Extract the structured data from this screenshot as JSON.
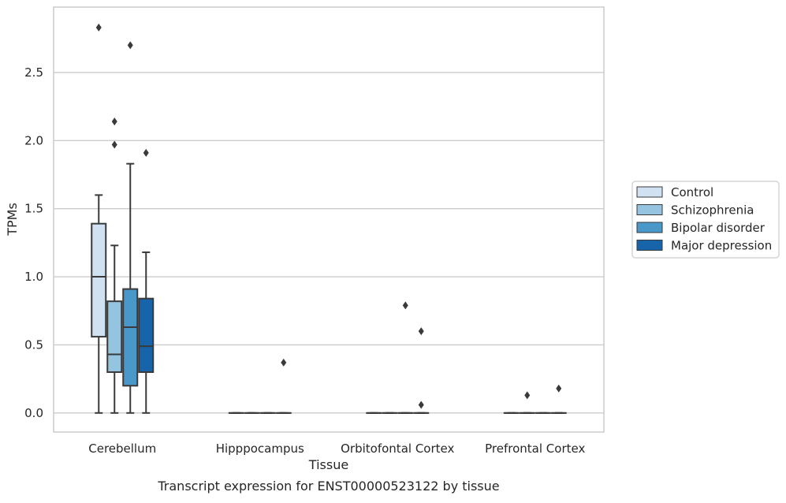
{
  "chart_data": {
    "type": "box",
    "xlabel": "Tissue",
    "ylabel": "TPMs",
    "caption": "Transcript expression for ENST00000523122 by tissue",
    "ylim": [
      -0.14,
      2.98
    ],
    "yticks": [
      0.0,
      0.5,
      1.0,
      1.5,
      2.0,
      2.5
    ],
    "ytick_labels": [
      "0.0",
      "0.5",
      "1.0",
      "1.5",
      "2.0",
      "2.5"
    ],
    "grid": "horizontal",
    "legend_position": "right",
    "categories": [
      "Cerebellum",
      "Hipppocampus",
      "Orbitofontal Cortex",
      "Prefrontal Cortex"
    ],
    "series": [
      {
        "name": "Control",
        "color": "#d0e1f2",
        "boxes": [
          {
            "whisker_low": 0.0,
            "q1": 0.56,
            "median": 1.0,
            "q3": 1.39,
            "whisker_high": 1.6,
            "outliers": [
              2.83
            ]
          },
          {
            "whisker_low": 0.0,
            "q1": 0.0,
            "median": 0.0,
            "q3": 0.0,
            "whisker_high": 0.0,
            "outliers": []
          },
          {
            "whisker_low": 0.0,
            "q1": 0.0,
            "median": 0.0,
            "q3": 0.0,
            "whisker_high": 0.0,
            "outliers": []
          },
          {
            "whisker_low": 0.0,
            "q1": 0.0,
            "median": 0.0,
            "q3": 0.0,
            "whisker_high": 0.0,
            "outliers": []
          }
        ]
      },
      {
        "name": "Schizophrenia",
        "color": "#94c4df",
        "boxes": [
          {
            "whisker_low": 0.0,
            "q1": 0.3,
            "median": 0.43,
            "q3": 0.82,
            "whisker_high": 1.23,
            "outliers": [
              1.97,
              2.14
            ]
          },
          {
            "whisker_low": 0.0,
            "q1": 0.0,
            "median": 0.0,
            "q3": 0.0,
            "whisker_high": 0.0,
            "outliers": []
          },
          {
            "whisker_low": 0.0,
            "q1": 0.0,
            "median": 0.0,
            "q3": 0.0,
            "whisker_high": 0.0,
            "outliers": []
          },
          {
            "whisker_low": 0.0,
            "q1": 0.0,
            "median": 0.0,
            "q3": 0.0,
            "whisker_high": 0.0,
            "outliers": [
              0.13
            ]
          }
        ]
      },
      {
        "name": "Bipolar disorder",
        "color": "#4a98c9",
        "boxes": [
          {
            "whisker_low": 0.0,
            "q1": 0.2,
            "median": 0.63,
            "q3": 0.91,
            "whisker_high": 1.83,
            "outliers": [
              2.7
            ]
          },
          {
            "whisker_low": 0.0,
            "q1": 0.0,
            "median": 0.0,
            "q3": 0.0,
            "whisker_high": 0.0,
            "outliers": []
          },
          {
            "whisker_low": 0.0,
            "q1": 0.0,
            "median": 0.0,
            "q3": 0.0,
            "whisker_high": 0.0,
            "outliers": [
              0.79
            ]
          },
          {
            "whisker_low": 0.0,
            "q1": 0.0,
            "median": 0.0,
            "q3": 0.0,
            "whisker_high": 0.0,
            "outliers": []
          }
        ]
      },
      {
        "name": "Major depression",
        "color": "#1764ab",
        "boxes": [
          {
            "whisker_low": 0.0,
            "q1": 0.3,
            "median": 0.49,
            "q3": 0.84,
            "whisker_high": 1.18,
            "outliers": [
              1.91
            ]
          },
          {
            "whisker_low": 0.0,
            "q1": 0.0,
            "median": 0.0,
            "q3": 0.0,
            "whisker_high": 0.0,
            "outliers": [
              0.37
            ]
          },
          {
            "whisker_low": 0.0,
            "q1": 0.0,
            "median": 0.0,
            "q3": 0.0,
            "whisker_high": 0.0,
            "outliers": [
              0.6,
              0.06
            ]
          },
          {
            "whisker_low": 0.0,
            "q1": 0.0,
            "median": 0.0,
            "q3": 0.0,
            "whisker_high": 0.0,
            "outliers": [
              0.18
            ]
          }
        ]
      }
    ]
  }
}
